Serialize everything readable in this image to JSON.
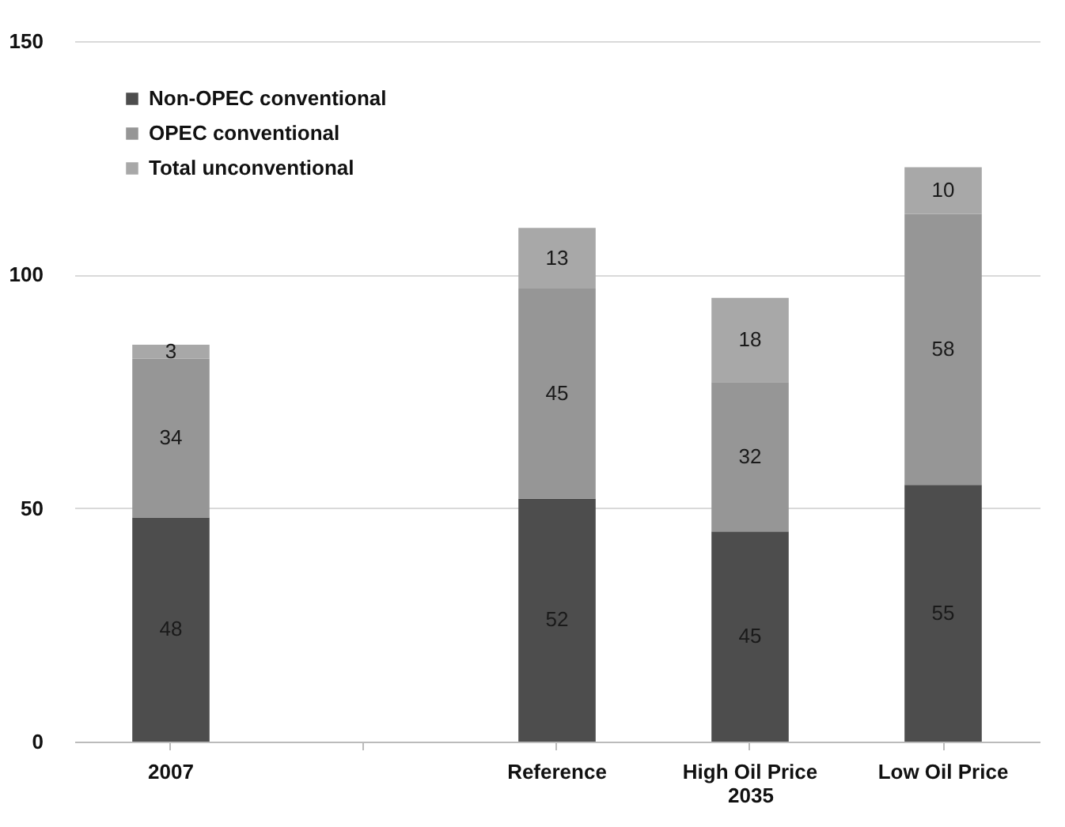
{
  "chart_data": {
    "type": "bar",
    "stacked": true,
    "categories": [
      "2007",
      null,
      "Reference",
      "High Oil Price",
      "Low Oil Price"
    ],
    "series": [
      {
        "name": "Non-OPEC conventional",
        "color": "#4d4d4d",
        "values": [
          48,
          null,
          52,
          45,
          55
        ]
      },
      {
        "name": "OPEC conventional",
        "color": "#969696",
        "values": [
          34,
          null,
          45,
          32,
          58
        ]
      },
      {
        "name": "Total unconventional",
        "color": "#a8a8a8",
        "values": [
          3,
          null,
          13,
          18,
          10
        ]
      }
    ],
    "ylim": [
      0,
      150
    ],
    "yticks": [
      0,
      50,
      100,
      150
    ],
    "grid": "y",
    "legend": "top left",
    "data_labels": true,
    "annotations": [
      "2035"
    ]
  }
}
